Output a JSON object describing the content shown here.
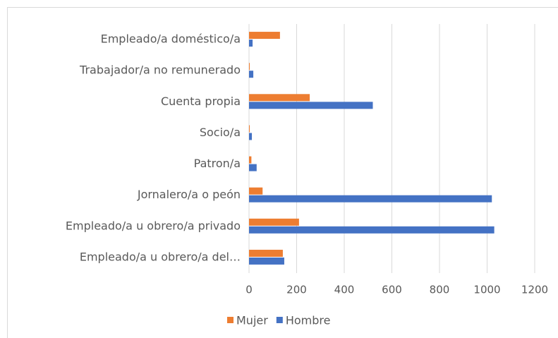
{
  "chart_data": {
    "type": "bar",
    "orientation": "horizontal",
    "categories": [
      "Empleado/a doméstico/a",
      "Trabajador/a no remunerado",
      "Cuenta propia",
      "Socio/a",
      "Patron/a",
      "Jornalero/a o peón",
      "Empleado/a u obrero/a privado",
      "Empleado/a u obrero/a del…"
    ],
    "series": [
      {
        "name": "Mujer",
        "color": "#ed7d31",
        "values": [
          130,
          3,
          255,
          3,
          10,
          57,
          210,
          142
        ]
      },
      {
        "name": "Hombre",
        "color": "#4472c4",
        "values": [
          15,
          18,
          520,
          12,
          32,
          1020,
          1030,
          148
        ]
      }
    ],
    "xlim": [
      0,
      1200
    ],
    "xticks": [
      0,
      200,
      400,
      600,
      800,
      1000,
      1200
    ],
    "grid": true,
    "legend": "bottom"
  }
}
